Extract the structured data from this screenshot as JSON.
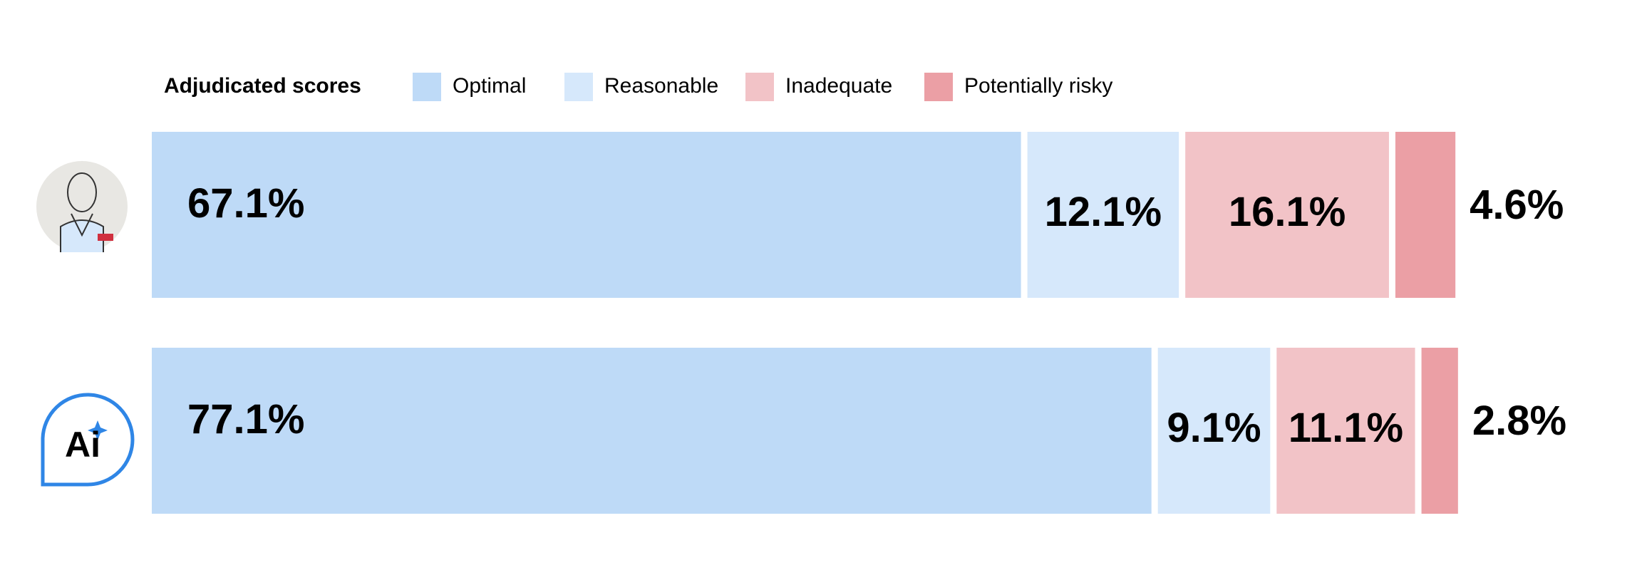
{
  "chart_data": {
    "type": "stacked_bar_horizontal",
    "legend_title": "Adjudicated scores",
    "categories": [
      null,
      "Ai"
    ],
    "series": [
      {
        "name": "Optimal",
        "color": "#bedaf7",
        "values": [
          67.1,
          77.1
        ],
        "value_labels": [
          "67.1%",
          "77.1%"
        ]
      },
      {
        "name": "Reasonable",
        "color": "#d6e8fb",
        "values": [
          12.1,
          9.1
        ],
        "value_labels": [
          "12.1%",
          "9.1%"
        ]
      },
      {
        "name": "Inadequate",
        "color": "#f2c3c7",
        "values": [
          16.1,
          11.1
        ],
        "value_labels": [
          "16.1%",
          "11.1%"
        ]
      },
      {
        "name": "Potentially risky",
        "color": "#eb9fa5",
        "values": [
          4.6,
          2.8
        ],
        "value_labels": [
          "4.6%",
          "2.8%"
        ]
      }
    ],
    "xlim": [
      0,
      100
    ]
  }
}
